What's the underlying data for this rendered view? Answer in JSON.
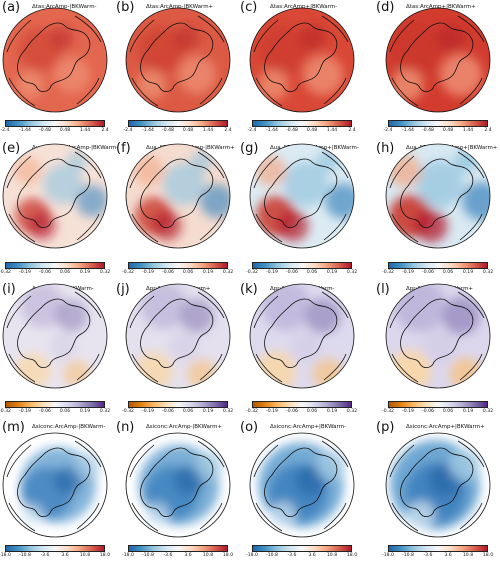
{
  "rows": [
    {
      "variable": "tas",
      "colormap": "RdBu_r",
      "cbar_ticks": [
        "-2.4",
        "-1.44",
        "-0.48",
        "0.48",
        "1.44",
        "2.4"
      ],
      "panels": [
        {
          "letter": "(a)",
          "title": "Δtas:ArcAmp-|BKWarm-"
        },
        {
          "letter": "(b)",
          "title": "Δtas:ArcAmp-|BKWarm+"
        },
        {
          "letter": "(c)",
          "title": "Δtas:ArcAmp+|BKWarm-"
        },
        {
          "letter": "(d)",
          "title": "Δtas:ArcAmp+|BKWarm+"
        }
      ]
    },
    {
      "variable": "ua_850hPa",
      "colormap": "RdBu_r",
      "cbar_ticks": [
        "-0.32",
        "-0.19",
        "-0.06",
        "0.06",
        "0.19",
        "0.32"
      ],
      "panels": [
        {
          "letter": "(e)",
          "title": "Δua_850hPa:ArcAmp-|BKWarm-"
        },
        {
          "letter": "(f)",
          "title": "Δua_850hPa:ArcAmp-|BKWarm+"
        },
        {
          "letter": "(g)",
          "title": "Δua_850hPa:ArcAmp+|BKWarm-"
        },
        {
          "letter": "(h)",
          "title": "Δua_850hPa:ArcAmp+|BKWarm+"
        }
      ]
    },
    {
      "variable": "pr",
      "colormap": "PuOr",
      "cbar_ticks": [
        "-0.32",
        "-0.19",
        "-0.06",
        "0.06",
        "0.19",
        "0.32"
      ],
      "panels": [
        {
          "letter": "(i)",
          "title": "Δpr:ArcAmp-|BKWarm-"
        },
        {
          "letter": "(j)",
          "title": "Δpr:ArcAmp-|BKWarm+"
        },
        {
          "letter": "(k)",
          "title": "Δpr:ArcAmp+|BKWarm-"
        },
        {
          "letter": "(l)",
          "title": "Δpr:ArcAmp+|BKWarm+"
        }
      ]
    },
    {
      "variable": "siconc",
      "colormap": "RdBu_r",
      "cbar_ticks": [
        "-18.0",
        "-10.8",
        "-3.6",
        "3.6",
        "10.8",
        "18.0"
      ],
      "panels": [
        {
          "letter": "(m)",
          "title": "Δsiconc:ArcAmp-|BKWarm-"
        },
        {
          "letter": "(n)",
          "title": "Δsiconc:ArcAmp-|BKWarm+"
        },
        {
          "letter": "(o)",
          "title": "Δsiconc:ArcAmp+|BKWarm-"
        },
        {
          "letter": "(p)",
          "title": "Δsiconc:ArcAmp+|BKWarm+"
        }
      ]
    }
  ]
}
